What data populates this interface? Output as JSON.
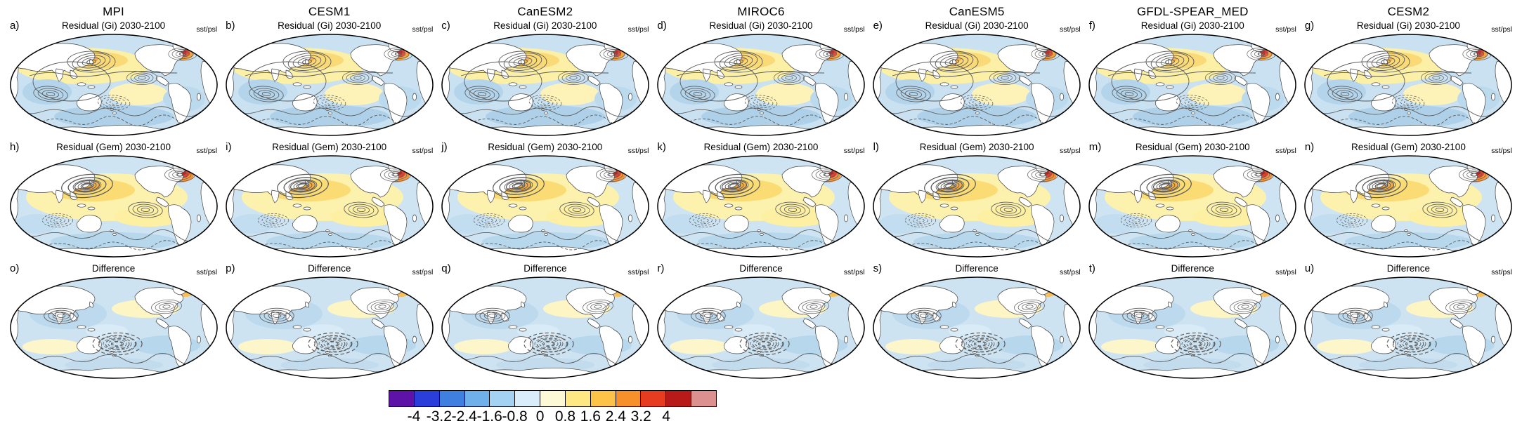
{
  "chart_data": {
    "type": "heatmap",
    "description": "3x7 grid of global map panels (filled sst shading with psl contour overlays) for seven climate models, with shared discrete colorbar",
    "projection": "robinson",
    "grid": {
      "rows": 3,
      "cols": 7
    },
    "columns": [
      "MPI",
      "CESM1",
      "CanESM2",
      "MIROC6",
      "CanESM5",
      "GFDL-SPEAR_MED",
      "CESM2"
    ],
    "rows": [
      {
        "title": "Residual (Gi) 2030-2100",
        "variant": "gi"
      },
      {
        "title": "Residual (Gem) 2030-2100",
        "variant": "gem"
      },
      {
        "title": "Difference",
        "variant": "diff"
      }
    ],
    "panel_letters": [
      "a)",
      "b)",
      "c)",
      "d)",
      "e)",
      "f)",
      "g)",
      "h)",
      "i)",
      "j)",
      "k)",
      "l)",
      "m)",
      "n)",
      "o)",
      "p)",
      "q)",
      "r)",
      "s)",
      "t)",
      "u)"
    ],
    "corner_label": "sst/psl",
    "shading_variable": "sst",
    "contour_variable": "psl",
    "colorbar": {
      "tick_labels": [
        "-4",
        "-3.2",
        "-2.4",
        "-1.6",
        "-0.8",
        "0",
        "0.8",
        "1.6",
        "2.4",
        "3.2",
        "4"
      ],
      "cell_colors": [
        "#5e12a8",
        "#2c3ed9",
        "#3f7fe0",
        "#6fb0ea",
        "#a3d2f2",
        "#d9edfa",
        "#fdf9d6",
        "#fde883",
        "#fcc348",
        "#f78f2a",
        "#e73c1f",
        "#b81a1a",
        "#dd9090"
      ],
      "value_range": [
        -4,
        4
      ]
    }
  }
}
